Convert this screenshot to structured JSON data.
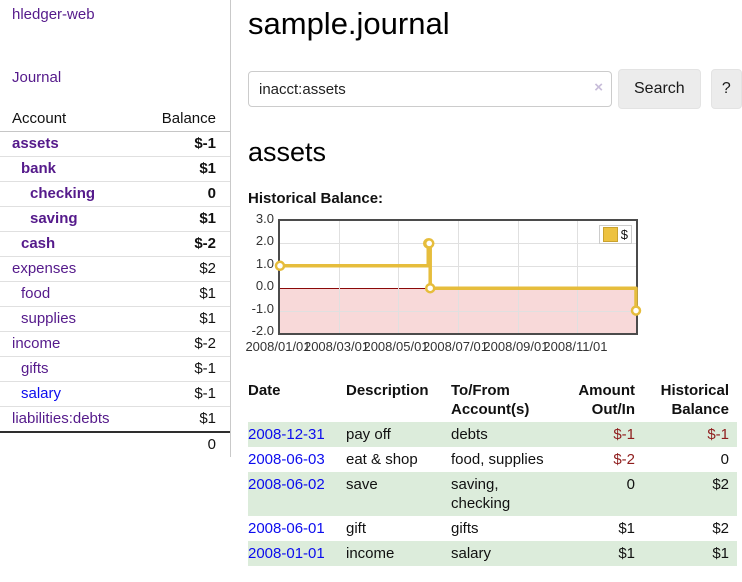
{
  "colors": {
    "link_purple": "#551a8b",
    "link_blue": "#0c0cee",
    "negative_strong": "#8f1d1d",
    "negative_muted": "#bb7777",
    "row_stripe_green": "#dcecdb",
    "chart_line_gold": "#e6bd3c",
    "legend_swatch_gold": "#edc240",
    "negative_region_pink": "#f8d9d9",
    "zero_line_red": "#8b0808"
  },
  "app": {
    "brand": "hledger-web",
    "nav_journal": "Journal"
  },
  "sidebar": {
    "headers": {
      "account": "Account",
      "balance": "Balance"
    },
    "accounts": [
      {
        "name": "assets",
        "depth": 1,
        "balance": "$-1",
        "bold": true,
        "balance_tone": "negative",
        "link_tone": "purple"
      },
      {
        "name": "bank",
        "depth": 2,
        "balance": "$1",
        "bold": true,
        "balance_tone": "normal",
        "link_tone": "purple"
      },
      {
        "name": "checking",
        "depth": 3,
        "balance": "0",
        "bold": true,
        "balance_tone": "normal",
        "link_tone": "purple"
      },
      {
        "name": "saving",
        "depth": 3,
        "balance": "$1",
        "bold": true,
        "balance_tone": "normal",
        "link_tone": "purple"
      },
      {
        "name": "cash",
        "depth": 2,
        "balance": "$-2",
        "bold": true,
        "balance_tone": "negative",
        "link_tone": "purple"
      },
      {
        "name": "expenses",
        "depth": 1,
        "balance": "$2",
        "bold": false,
        "balance_tone": "normal",
        "link_tone": "purple"
      },
      {
        "name": "food",
        "depth": 2,
        "balance": "$1",
        "bold": false,
        "balance_tone": "normal",
        "link_tone": "purple"
      },
      {
        "name": "supplies",
        "depth": 2,
        "balance": "$1",
        "bold": false,
        "balance_tone": "normal",
        "link_tone": "purple"
      },
      {
        "name": "income",
        "depth": 1,
        "balance": "$-2",
        "bold": false,
        "balance_tone": "negative-muted",
        "link_tone": "purple"
      },
      {
        "name": "gifts",
        "depth": 2,
        "balance": "$-1",
        "bold": false,
        "balance_tone": "negative-muted",
        "link_tone": "purple"
      },
      {
        "name": "salary",
        "depth": 2,
        "balance": "$-1",
        "bold": false,
        "balance_tone": "negative-muted",
        "link_tone": "blue"
      },
      {
        "name": "liabilities:debts",
        "depth": 1,
        "balance": "$1",
        "bold": false,
        "balance_tone": "normal",
        "link_tone": "purple"
      }
    ],
    "total": "0"
  },
  "header": {
    "title": "sample.journal"
  },
  "search": {
    "query": "inacct:assets",
    "clear_icon": "×",
    "button_label": "Search",
    "help_label": "?"
  },
  "account_page": {
    "title": "assets"
  },
  "chart_data": {
    "type": "line",
    "step": true,
    "title": "Historical Balance:",
    "ylim": [
      -2.0,
      3.0
    ],
    "yticks": [
      3.0,
      2.0,
      1.0,
      0.0,
      -1.0,
      -2.0
    ],
    "x_range": [
      "2008-01-01",
      "2008-12-31"
    ],
    "xticks": [
      {
        "date": "2008-01-01",
        "label": "2008/01/01"
      },
      {
        "date": "2008-03-01",
        "label": "2008/03/01"
      },
      {
        "date": "2008-05-01",
        "label": "2008/05/01"
      },
      {
        "date": "2008-07-01",
        "label": "2008/07/01"
      },
      {
        "date": "2008-09-01",
        "label": "2008/09/01"
      },
      {
        "date": "2008-11-01",
        "label": "2008/11/01"
      }
    ],
    "series": [
      {
        "name": "$",
        "color": "#e6bd3c",
        "points": [
          {
            "date": "2008-01-01",
            "value": 1
          },
          {
            "date": "2008-06-01",
            "value": 2
          },
          {
            "date": "2008-06-02",
            "value": 2
          },
          {
            "date": "2008-06-03",
            "value": 0
          },
          {
            "date": "2008-12-31",
            "value": -1
          }
        ]
      }
    ],
    "legend_position": "top-right",
    "grid": true,
    "negative_region_below": 0
  },
  "register": {
    "headers": {
      "date": "Date",
      "sort_icon": "∧",
      "description": "Description",
      "accounts": "To/From Account(s)",
      "amount": "Amount Out/In",
      "balance": "Historical Balance"
    },
    "rows": [
      {
        "date": "2008-12-31",
        "description": "pay off",
        "accounts": "debts",
        "amount": "$-1",
        "balance": "$-1",
        "amount_negative": true,
        "balance_negative": true
      },
      {
        "date": "2008-06-03",
        "description": "eat & shop",
        "accounts": "food, supplies",
        "amount": "$-2",
        "balance": "0",
        "amount_negative": true,
        "balance_negative": false
      },
      {
        "date": "2008-06-02",
        "description": "save",
        "accounts": "saving, checking",
        "amount": "0",
        "balance": "$2",
        "amount_negative": false,
        "balance_negative": false
      },
      {
        "date": "2008-06-01",
        "description": "gift",
        "accounts": "gifts",
        "amount": "$1",
        "balance": "$2",
        "amount_negative": false,
        "balance_negative": false
      },
      {
        "date": "2008-01-01",
        "description": "income",
        "accounts": "salary",
        "amount": "$1",
        "balance": "$1",
        "amount_negative": false,
        "balance_negative": false
      }
    ]
  }
}
